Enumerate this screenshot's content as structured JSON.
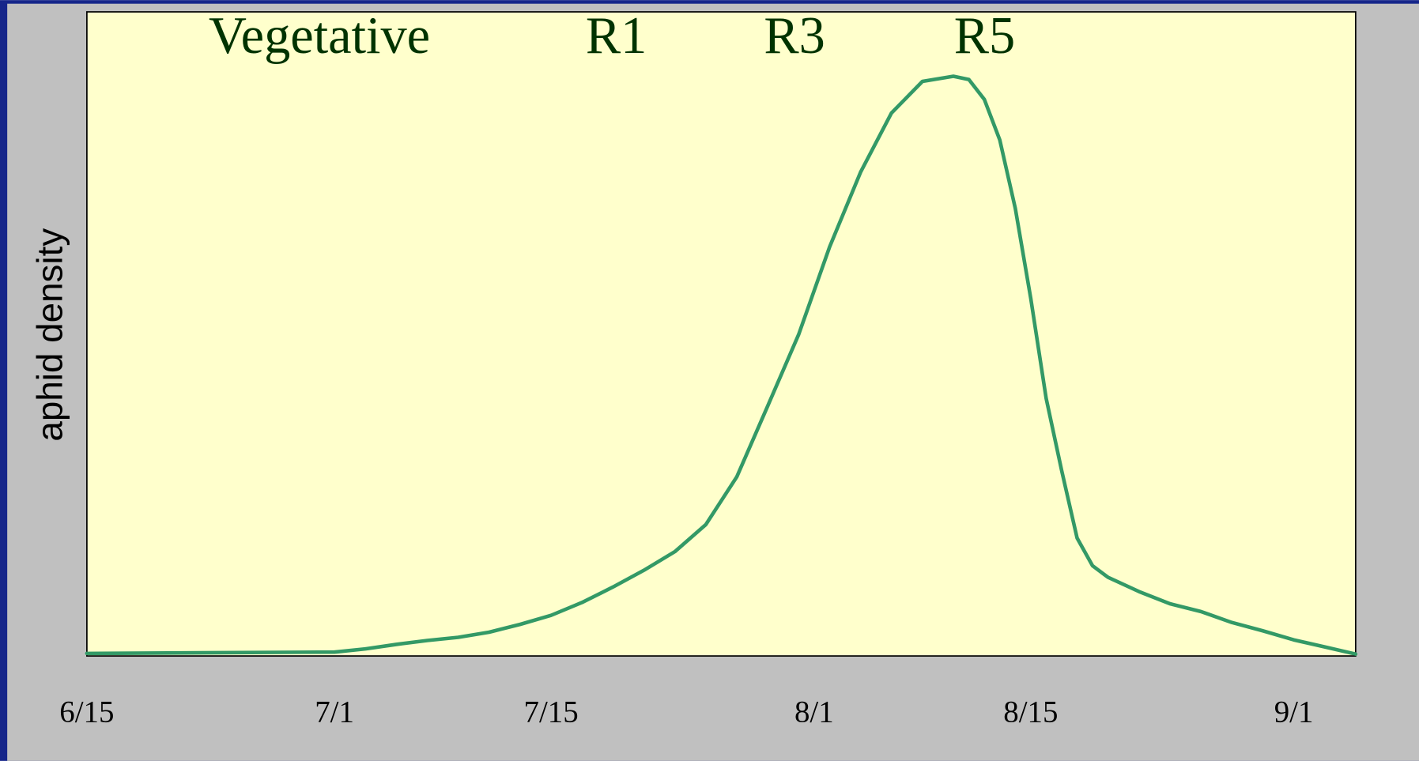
{
  "chart_data": {
    "type": "line",
    "ylabel": "aphid density",
    "annotations": [
      "Vegetative",
      "R1",
      "R3",
      "R5"
    ],
    "x": [
      "6/15",
      "7/1",
      "7/3",
      "7/5",
      "7/7",
      "7/9",
      "7/11",
      "7/13",
      "7/15",
      "7/17",
      "7/19",
      "7/21",
      "7/23",
      "7/25",
      "7/27",
      "7/29",
      "7/31",
      "8/2",
      "8/4",
      "8/6",
      "8/8",
      "8/10",
      "8/11",
      "8/12",
      "8/13",
      "8/14",
      "8/15",
      "8/16",
      "8/17",
      "8/18",
      "8/19",
      "8/20",
      "8/22",
      "8/24",
      "8/26",
      "8/28",
      "8/30",
      "9/1",
      "9/3",
      "9/5"
    ],
    "values": [
      0.4,
      0.6,
      1.1,
      1.8,
      2.4,
      2.9,
      3.7,
      4.9,
      6.3,
      8.3,
      10.7,
      13.3,
      16.2,
      20.4,
      27.8,
      38.8,
      49.9,
      63.5,
      75.1,
      84.3,
      89.2,
      90.0,
      89.5,
      86.4,
      80.1,
      69.5,
      55.5,
      40.0,
      28.8,
      18.3,
      14.0,
      12.2,
      10.0,
      8.1,
      6.9,
      5.2,
      3.9,
      2.5,
      1.4,
      0.3
    ],
    "color": "#339966",
    "xlim": [
      "6/15",
      "9/5"
    ],
    "xticks": [
      "6/15",
      "7/1",
      "7/15",
      "8/1",
      "8/15",
      "9/1"
    ],
    "ylim": [
      0,
      100
    ],
    "grid": false
  }
}
